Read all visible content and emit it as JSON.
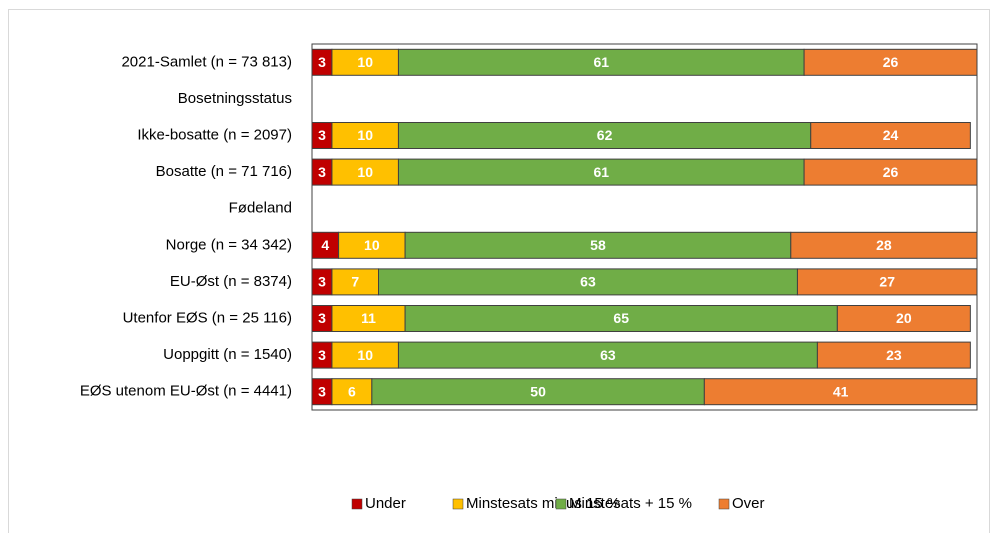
{
  "chart_data": {
    "type": "stacked-bar-horizontal",
    "categories": [
      "2021-Samlet (n = 73 813)",
      "Bosetningsstatus",
      "Ikke-bosatte (n = 2097)",
      "Bosatte (n = 71 716)",
      "Fødeland",
      "Norge (n = 34 342)",
      "EU-Øst (n = 8374)",
      "Utenfor EØS (n = 25 116)",
      "Uoppgitt (n = 1540)",
      "EØS utenom EU-Øst (n = 4441)"
    ],
    "series": [
      {
        "name": "Under",
        "color": "#c00000",
        "values": [
          3,
          null,
          3,
          3,
          null,
          4,
          3,
          3,
          3,
          3
        ]
      },
      {
        "name": "Minstesats minus 15 %",
        "color": "#ffc000",
        "values": [
          10,
          null,
          10,
          10,
          null,
          10,
          7,
          11,
          10,
          6
        ]
      },
      {
        "name": "Minstesats + 15 %",
        "color": "#70ad47",
        "values": [
          61,
          null,
          62,
          61,
          null,
          58,
          63,
          65,
          63,
          50
        ]
      },
      {
        "name": "Over",
        "color": "#ed7d31",
        "values": [
          26,
          null,
          24,
          26,
          null,
          28,
          27,
          20,
          23,
          41
        ]
      }
    ],
    "xlim": [
      0,
      100
    ],
    "legend": "bottom"
  }
}
